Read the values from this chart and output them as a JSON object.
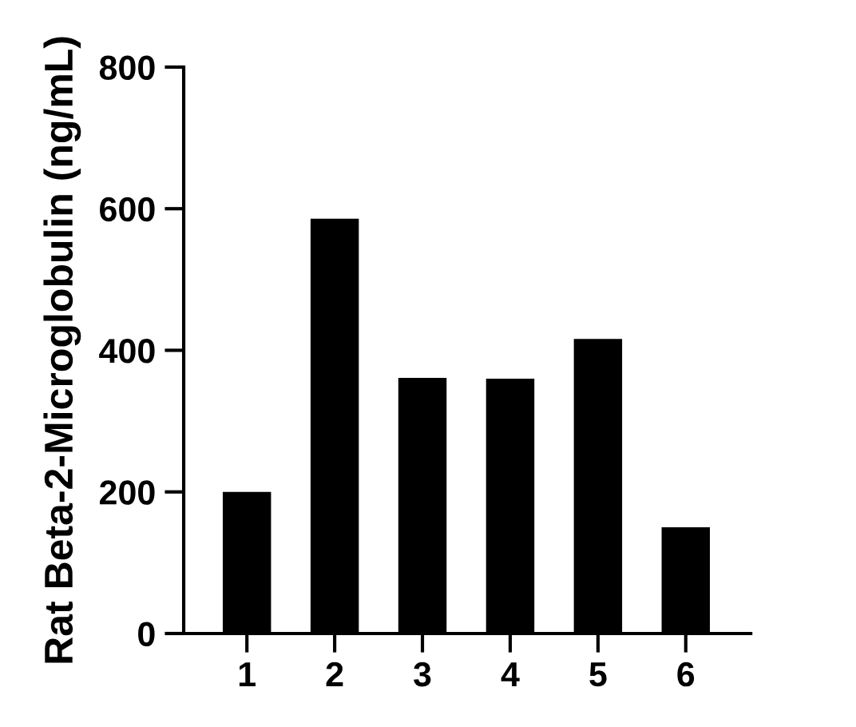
{
  "chart_data": {
    "type": "bar",
    "categories": [
      "1",
      "2",
      "3",
      "4",
      "5",
      "6"
    ],
    "values": [
      200,
      586,
      361,
      360,
      416,
      150
    ],
    "color": "#000000",
    "ylabel": "Rat Beta-2-Microglobulin (ng/mL)",
    "ylim": [
      0,
      800
    ],
    "yticks": [
      0,
      200,
      400,
      600,
      800
    ],
    "grid": false,
    "legend": false
  }
}
